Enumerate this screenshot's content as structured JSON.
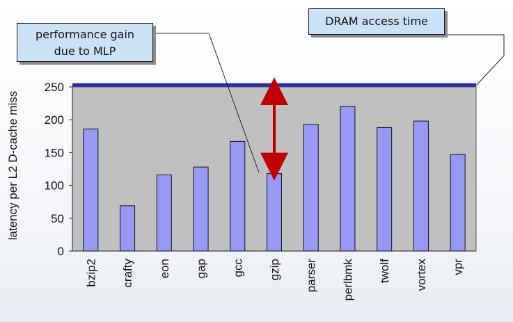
{
  "callouts": {
    "mlp_line1": "performance gain",
    "mlp_line2": "due to MLP",
    "dram": "DRAM access time"
  },
  "chart_data": {
    "type": "bar",
    "title": "",
    "xlabel": "",
    "ylabel": "latency per L2 D-cache miss",
    "categories": [
      "bzip2",
      "crafty",
      "eon",
      "gap",
      "gcc",
      "gzip",
      "parser",
      "perlbmk",
      "twolf",
      "vortex",
      "vpr"
    ],
    "values": [
      186,
      69,
      116,
      128,
      167,
      118,
      193,
      220,
      188,
      198,
      147
    ],
    "ylim": [
      0,
      250
    ],
    "yticks": [
      0,
      50,
      100,
      150,
      200,
      250
    ],
    "reference_line": {
      "value": 253,
      "label": "DRAM access time"
    },
    "grid": false,
    "legend": "none",
    "colors": {
      "bar": "#9898f5",
      "plot_bg": "#c0c0c0",
      "reference_line": "#2b2bb0",
      "arrow": "#c00000"
    }
  }
}
